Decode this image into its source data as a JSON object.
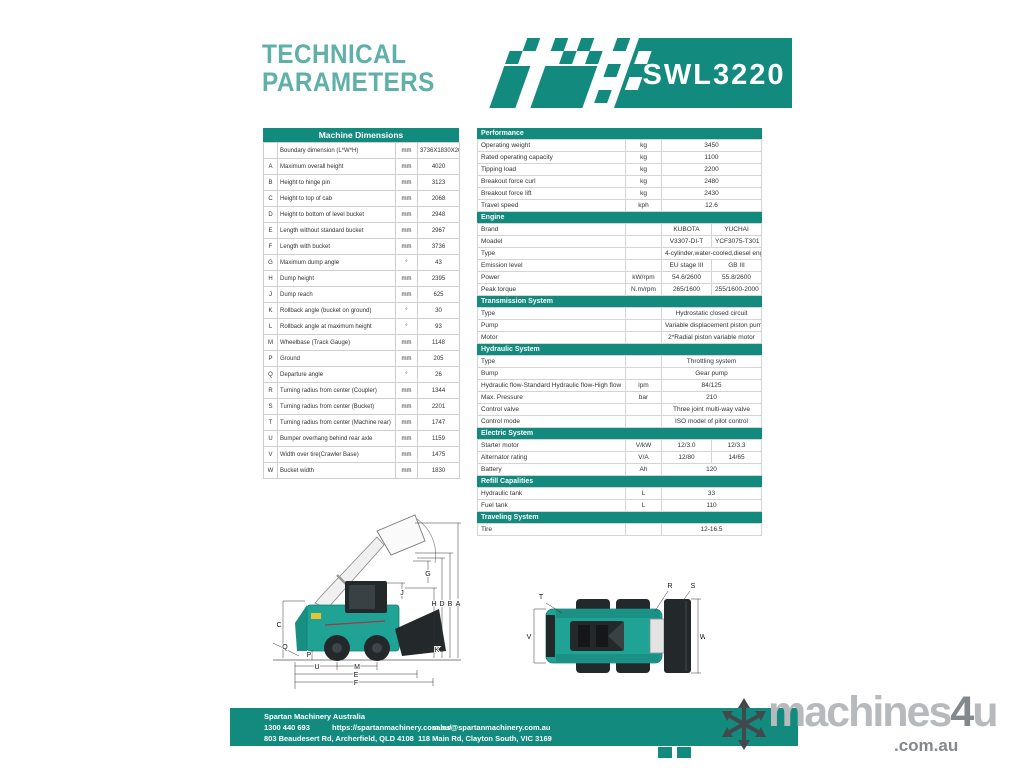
{
  "header": {
    "title_line1": "TECHNICAL",
    "title_line2": "PARAMETERS",
    "model": "SWL3220"
  },
  "colors": {
    "teal": "#128a7e",
    "teal_light": "#5fb0a8",
    "diagram_teal": "#1ea395",
    "dark": "#23282b"
  },
  "machine_dimensions": {
    "title": "Machine Dimensions",
    "rows": [
      {
        "key": "",
        "label": "Boundary dimension (L*W*H)",
        "unit": "mm",
        "value": "3736X1830X2068"
      },
      {
        "key": "A",
        "label": "Maximum overall height",
        "unit": "mm",
        "value": "4020"
      },
      {
        "key": "B",
        "label": "Height to hinge pin",
        "unit": "mm",
        "value": "3123"
      },
      {
        "key": "C",
        "label": "Height to top of cab",
        "unit": "mm",
        "value": "2068"
      },
      {
        "key": "D",
        "label": "Height to bottom of level bucket",
        "unit": "mm",
        "value": "2948"
      },
      {
        "key": "E",
        "label": "Length without standard bucket",
        "unit": "mm",
        "value": "2967"
      },
      {
        "key": "F",
        "label": "Length with bucket",
        "unit": "mm",
        "value": "3736"
      },
      {
        "key": "G",
        "label": "Maximum dump angle",
        "unit": "°",
        "value": "43"
      },
      {
        "key": "H",
        "label": "Dump height",
        "unit": "mm",
        "value": "2395"
      },
      {
        "key": "J",
        "label": "Dump reach",
        "unit": "mm",
        "value": "625"
      },
      {
        "key": "K",
        "label": "Rollback angle (bucket on ground)",
        "unit": "°",
        "value": "30"
      },
      {
        "key": "L",
        "label": "Rollback angle at maximum height",
        "unit": "°",
        "value": "93"
      },
      {
        "key": "M",
        "label": "Wheelbase (Track Gauge)",
        "unit": "mm",
        "value": "1148"
      },
      {
        "key": "P",
        "label": "Ground",
        "unit": "mm",
        "value": "205"
      },
      {
        "key": "Q",
        "label": "Departure angle",
        "unit": "°",
        "value": "26"
      },
      {
        "key": "R",
        "label": "Turning radius from center (Coupler)",
        "unit": "mm",
        "value": "1344"
      },
      {
        "key": "S",
        "label": "Turning radius from center (Bucket)",
        "unit": "mm",
        "value": "2201"
      },
      {
        "key": "T",
        "label": "Turning radius from center (Machine rear)",
        "unit": "mm",
        "value": "1747"
      },
      {
        "key": "U",
        "label": "Bumper overhang behind rear axle",
        "unit": "mm",
        "value": "1159"
      },
      {
        "key": "V",
        "label": "Width over tire(Crawler Base)",
        "unit": "mm",
        "value": "1475"
      },
      {
        "key": "W",
        "label": "Bucket width",
        "unit": "mm",
        "value": "1830"
      }
    ]
  },
  "spec_sections": [
    {
      "title": "Performance",
      "rows": [
        {
          "label": "Operating weight",
          "unit": "kg",
          "values": [
            "3450"
          ]
        },
        {
          "label": "Rated operating capacity",
          "unit": "kg",
          "values": [
            "1100"
          ]
        },
        {
          "label": "Tipping load",
          "unit": "kg",
          "values": [
            "2200"
          ]
        },
        {
          "label": "Breakout force curl",
          "unit": "kg",
          "values": [
            "2480"
          ]
        },
        {
          "label": "Breakout force lift",
          "unit": "kg",
          "values": [
            "2430"
          ]
        },
        {
          "label": "Travel speed",
          "unit": "kph",
          "values": [
            "12.6"
          ]
        }
      ]
    },
    {
      "title": "Engine",
      "rows": [
        {
          "label": "Brand",
          "unit": "",
          "values": [
            "KUBOTA",
            "YUCHAI"
          ]
        },
        {
          "label": "Moadel",
          "unit": "",
          "values": [
            "V3307-DI-T",
            "YCF3075-T301"
          ]
        },
        {
          "label": "Type",
          "unit": "",
          "values": [
            "4-cylinder,water-cooled,diesel engine"
          ]
        },
        {
          "label": "Emission level",
          "unit": "",
          "values": [
            "EU stage III",
            "GB III"
          ]
        },
        {
          "label": "Power",
          "unit": "kW/rpm",
          "values": [
            "54.6/2600",
            "55.8/2600"
          ]
        },
        {
          "label": "Peak torque",
          "unit": "N.m/rpm",
          "values": [
            "265/1600",
            "255/1600-2000"
          ]
        }
      ]
    },
    {
      "title": "Transmission System",
      "rows": [
        {
          "label": "Type",
          "unit": "",
          "values": [
            "Hydrostatic closed circuit"
          ]
        },
        {
          "label": "Pump",
          "unit": "",
          "values": [
            "Variable displacement piston pump"
          ]
        },
        {
          "label": "Motor",
          "unit": "",
          "values": [
            "2*Radial piston variable motor"
          ]
        }
      ]
    },
    {
      "title": "Hydraulic System",
      "rows": [
        {
          "label": "Type",
          "unit": "",
          "values": [
            "Throttling system"
          ]
        },
        {
          "label": "Bump",
          "unit": "",
          "values": [
            "Gear pump"
          ]
        },
        {
          "label": "Hydraulic flow-Standard Hydraulic flow-High flow",
          "unit": "lpm",
          "values": [
            "84/125"
          ]
        },
        {
          "label": "Max. Pressure",
          "unit": "bar",
          "values": [
            "210"
          ]
        },
        {
          "label": "Control valve",
          "unit": "",
          "values": [
            "Three joint multi-way valve"
          ]
        },
        {
          "label": "Control mode",
          "unit": "",
          "values": [
            "ISO model of pilot control"
          ]
        }
      ]
    },
    {
      "title": "Electric System",
      "rows": [
        {
          "label": "Starter motor",
          "unit": "V/kW",
          "values": [
            "12/3.0",
            "12/3.3"
          ]
        },
        {
          "label": "Alternator rating",
          "unit": "V/A",
          "values": [
            "12/80",
            "14/65"
          ]
        },
        {
          "label": "Battery",
          "unit": "Ah",
          "values": [
            "120"
          ]
        }
      ]
    },
    {
      "title": "Refill Capalities",
      "rows": [
        {
          "label": "Hydraulic tank",
          "unit": "L",
          "values": [
            "33"
          ]
        },
        {
          "label": "Fuel tank",
          "unit": "L",
          "values": [
            "110"
          ]
        }
      ]
    },
    {
      "title": "Traveling System",
      "rows": [
        {
          "label": "Tire",
          "unit": "",
          "values": [
            "12-16.5"
          ]
        }
      ]
    }
  ],
  "diagrams": {
    "side_view_labels": [
      "C",
      "G",
      "J",
      "H",
      "D",
      "B",
      "A",
      "Q",
      "P",
      "K",
      "U",
      "M",
      "E",
      "F"
    ],
    "top_view_labels": [
      "T",
      "R",
      "S",
      "V",
      "W"
    ]
  },
  "footer": {
    "company": "Spartan Machinery Australia",
    "phone": "1300 440 693",
    "website": "https://spartanmachinery.com.au/",
    "email": "sales@spartanmachinery.com.au",
    "address1": "803 Beaudesert Rd, Archerfield, QLD 4108",
    "address2": "118 Main Rd, Clayton South, VIC 3169"
  },
  "watermark": {
    "name_part1": "machines",
    "name_part2": "4",
    "name_part3": "u",
    "domain": ".com.au"
  }
}
